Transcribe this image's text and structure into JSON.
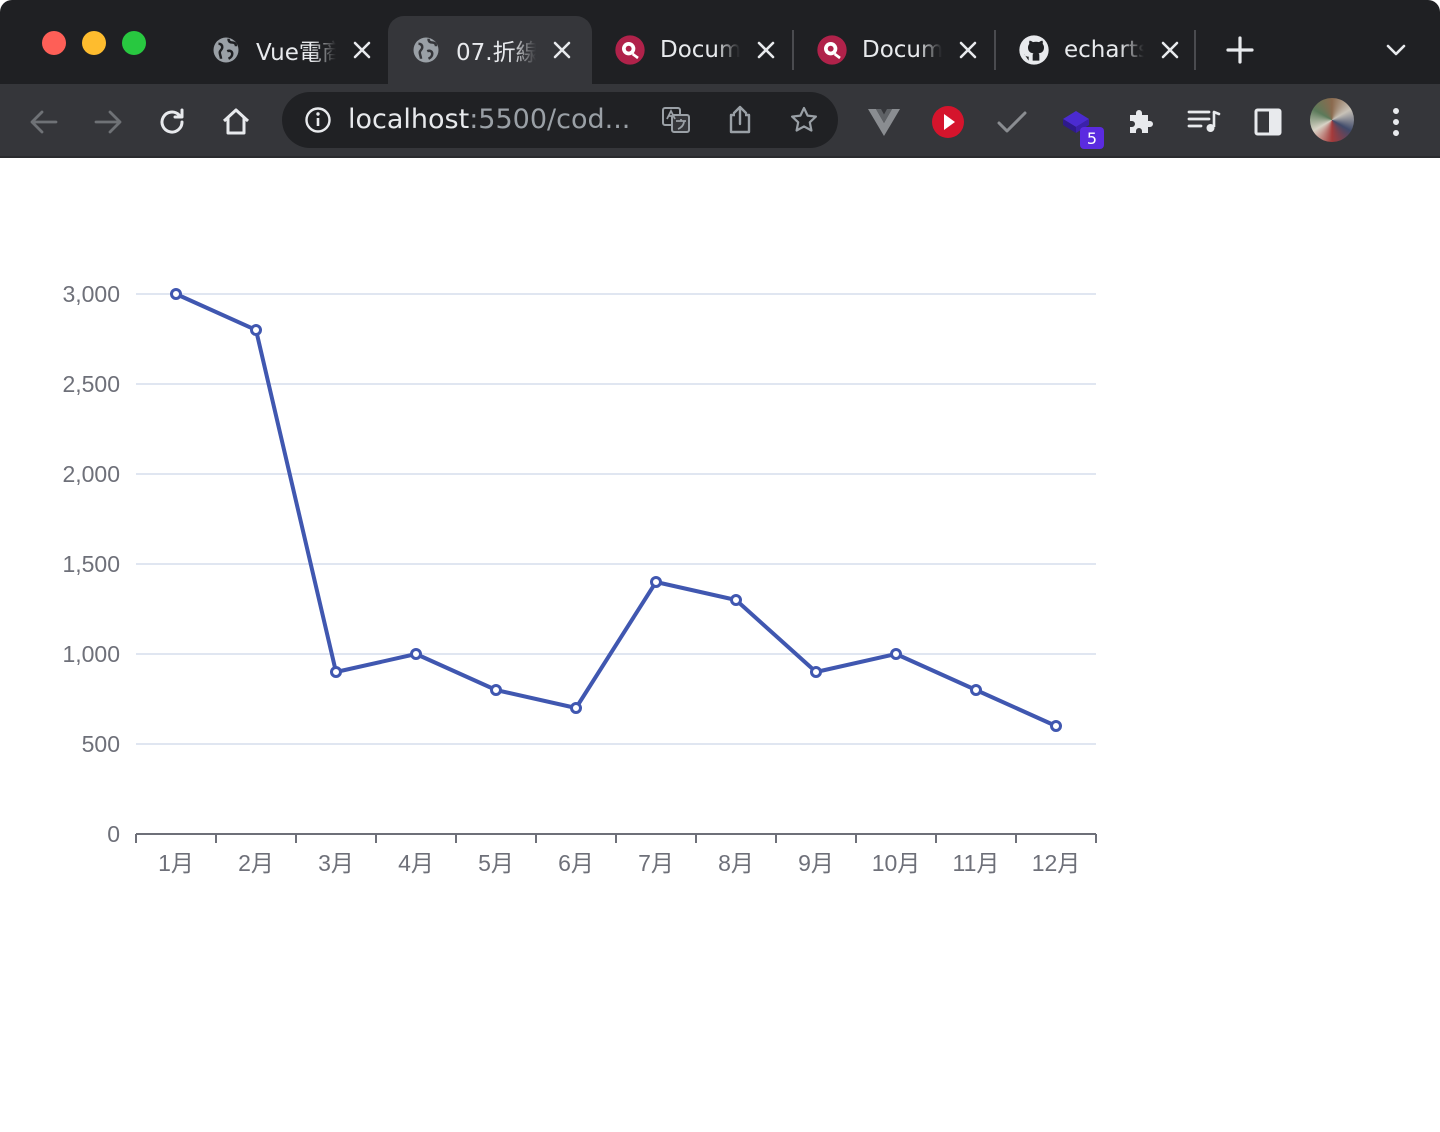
{
  "window": {
    "controls": [
      "close",
      "minimize",
      "zoom"
    ]
  },
  "tabs": [
    {
      "title": "Vue電商",
      "icon": "globe-icon",
      "active": false
    },
    {
      "title": "07.折線",
      "icon": "globe-icon",
      "active": true
    },
    {
      "title": "Document",
      "icon": "quasar-icon",
      "active": false
    },
    {
      "title": "Document",
      "icon": "quasar-icon",
      "active": false
    },
    {
      "title": "echarts",
      "icon": "github-icon",
      "active": false
    }
  ],
  "toolbar": {
    "url_host": "localhost",
    "url_rest": ":5500/cod...",
    "extension_badge": "5"
  },
  "colors": {
    "series": "#4057b0",
    "grid": "#e0e6f1",
    "axis": "#6e7079"
  },
  "chart_data": {
    "type": "line",
    "categories": [
      "1月",
      "2月",
      "3月",
      "4月",
      "5月",
      "6月",
      "7月",
      "8月",
      "9月",
      "10月",
      "11月",
      "12月"
    ],
    "series": [
      {
        "values": [
          3000,
          2800,
          900,
          1000,
          800,
          700,
          1400,
          1300,
          900,
          1000,
          800,
          600
        ]
      }
    ],
    "yticks": [
      "0",
      "500",
      "1,000",
      "1,500",
      "2,000",
      "2,500",
      "3,000"
    ],
    "ylim": [
      0,
      3000
    ],
    "grid": true,
    "legend": "none"
  }
}
